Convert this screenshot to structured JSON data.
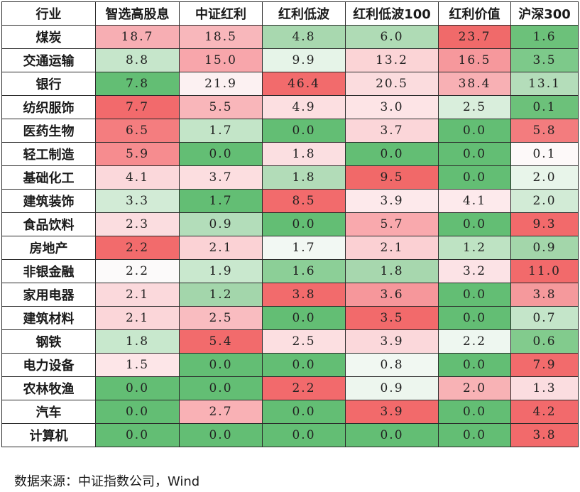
{
  "table": {
    "headers": [
      "行业",
      "智选高股息",
      "中证红利",
      "红利低波",
      "红利低波100",
      "红利价值",
      "沪深300"
    ],
    "rows": [
      {
        "industry": "煤炭",
        "values": [
          "18.7",
          "18.5",
          "4.8",
          "6.0",
          "23.7",
          "1.6"
        ]
      },
      {
        "industry": "交通运输",
        "values": [
          "8.8",
          "15.0",
          "9.9",
          "13.2",
          "16.5",
          "3.5"
        ]
      },
      {
        "industry": "银行",
        "values": [
          "7.8",
          "21.9",
          "46.4",
          "20.5",
          "38.4",
          "13.1"
        ]
      },
      {
        "industry": "纺织服饰",
        "values": [
          "7.7",
          "5.5",
          "4.9",
          "3.0",
          "2.5",
          "0.1"
        ]
      },
      {
        "industry": "医药生物",
        "values": [
          "6.5",
          "1.7",
          "0.0",
          "3.7",
          "0.0",
          "5.8"
        ]
      },
      {
        "industry": "轻工制造",
        "values": [
          "5.9",
          "0.0",
          "1.8",
          "0.0",
          "0.0",
          "0.1"
        ]
      },
      {
        "industry": "基础化工",
        "values": [
          "4.1",
          "3.7",
          "1.8",
          "9.5",
          "0.0",
          "2.0"
        ]
      },
      {
        "industry": "建筑装饰",
        "values": [
          "3.3",
          "1.7",
          "8.5",
          "3.9",
          "4.1",
          "2.0"
        ]
      },
      {
        "industry": "食品饮料",
        "values": [
          "2.3",
          "0.9",
          "0.0",
          "5.7",
          "0.0",
          "9.3"
        ]
      },
      {
        "industry": "房地产",
        "values": [
          "2.2",
          "2.1",
          "1.7",
          "2.1",
          "1.2",
          "0.9"
        ]
      },
      {
        "industry": "非银金融",
        "values": [
          "2.2",
          "1.9",
          "1.6",
          "1.8",
          "3.2",
          "11.0"
        ]
      },
      {
        "industry": "家用电器",
        "values": [
          "2.1",
          "1.2",
          "3.8",
          "3.6",
          "0.0",
          "3.8"
        ]
      },
      {
        "industry": "建筑材料",
        "values": [
          "2.1",
          "2.5",
          "0.0",
          "3.5",
          "0.0",
          "0.7"
        ]
      },
      {
        "industry": "钢铁",
        "values": [
          "1.8",
          "5.4",
          "2.5",
          "3.9",
          "2.2",
          "0.6"
        ]
      },
      {
        "industry": "电力设备",
        "values": [
          "1.5",
          "0.0",
          "0.0",
          "0.8",
          "0.0",
          "7.9"
        ]
      },
      {
        "industry": "农林牧渔",
        "values": [
          "0.0",
          "0.0",
          "2.2",
          "0.9",
          "2.0",
          "1.3"
        ]
      },
      {
        "industry": "汽车",
        "values": [
          "0.0",
          "2.7",
          "0.0",
          "3.9",
          "0.0",
          "4.2"
        ]
      },
      {
        "industry": "计算机",
        "values": [
          "0.0",
          "0.0",
          "0.0",
          "0.0",
          "0.0",
          "3.8"
        ]
      }
    ],
    "cell_colors": [
      [
        "#f7aeb3",
        "#f8b7bb",
        "#a8d8af",
        "#afdbb5",
        "#f06a6a",
        "#6cc17a"
      ],
      [
        "#c6e6cb",
        "#f8a6ab",
        "#e6f4e8",
        "#fbd4d6",
        "#f6989c",
        "#7dc98a"
      ],
      [
        "#63be74",
        "#fcf1f2",
        "#f26b6c",
        "#fbdcde",
        "#f8b0b4",
        "#b4ddba"
      ],
      [
        "#f26a6c",
        "#f9b6ba",
        "#fcdfe1",
        "#fde4e6",
        "#d9eedc",
        "#6cc17a"
      ],
      [
        "#f47d7f",
        "#c3e5c8",
        "#63be74",
        "#fbd6d9",
        "#63be74",
        "#f37c7e"
      ],
      [
        "#f68c8f",
        "#63be74",
        "#fbdfe1",
        "#63be74",
        "#63be74",
        "#fdf9f9"
      ],
      [
        "#fbd8db",
        "#fcdee0",
        "#b2dcb8",
        "#f16969",
        "#63be74",
        "#e8f5ea"
      ],
      [
        "#d2ebd6",
        "#63be74",
        "#f26b6c",
        "#fde9eb",
        "#fdeaec",
        "#d2ebd6"
      ],
      [
        "#fbdde0",
        "#b3ddba",
        "#63be74",
        "#f9a9ad",
        "#63be74",
        "#f26a6b"
      ],
      [
        "#f26b6c",
        "#fbd2d5",
        "#f2f8f3",
        "#fbd0d3",
        "#bee3c3",
        "#a3d6aa"
      ],
      [
        "#fcfafa",
        "#c9e8ce",
        "#8ccf97",
        "#a7d7ae",
        "#fce3e6",
        "#f26a6b"
      ],
      [
        "#fbd9dc",
        "#a3d6ab",
        "#f26b6c",
        "#f6979b",
        "#63be74",
        "#f5999c"
      ],
      [
        "#fbd6d9",
        "#f9bcc0",
        "#63be74",
        "#f26a6b",
        "#63be74",
        "#c4e5c9"
      ],
      [
        "#c8e8cd",
        "#f26b6c",
        "#fcdfe1",
        "#fbd8db",
        "#eef7f0",
        "#82cb8d"
      ],
      [
        "#fde6e8",
        "#63be74",
        "#63be74",
        "#f1f8f2",
        "#63be74",
        "#f26b6c"
      ],
      [
        "#63be74",
        "#63be74",
        "#f26a6c",
        "#edf6ee",
        "#f8b2b5",
        "#fbdde0"
      ],
      [
        "#63be74",
        "#f9b1b5",
        "#63be74",
        "#f26a6b",
        "#63be74",
        "#f26a6c"
      ],
      [
        "#63be74",
        "#63be74",
        "#63be74",
        "#63be74",
        "#63be74",
        "#f26a6b"
      ]
    ]
  },
  "footer": {
    "source_note": "数据来源：中证指数公司，Wind"
  }
}
